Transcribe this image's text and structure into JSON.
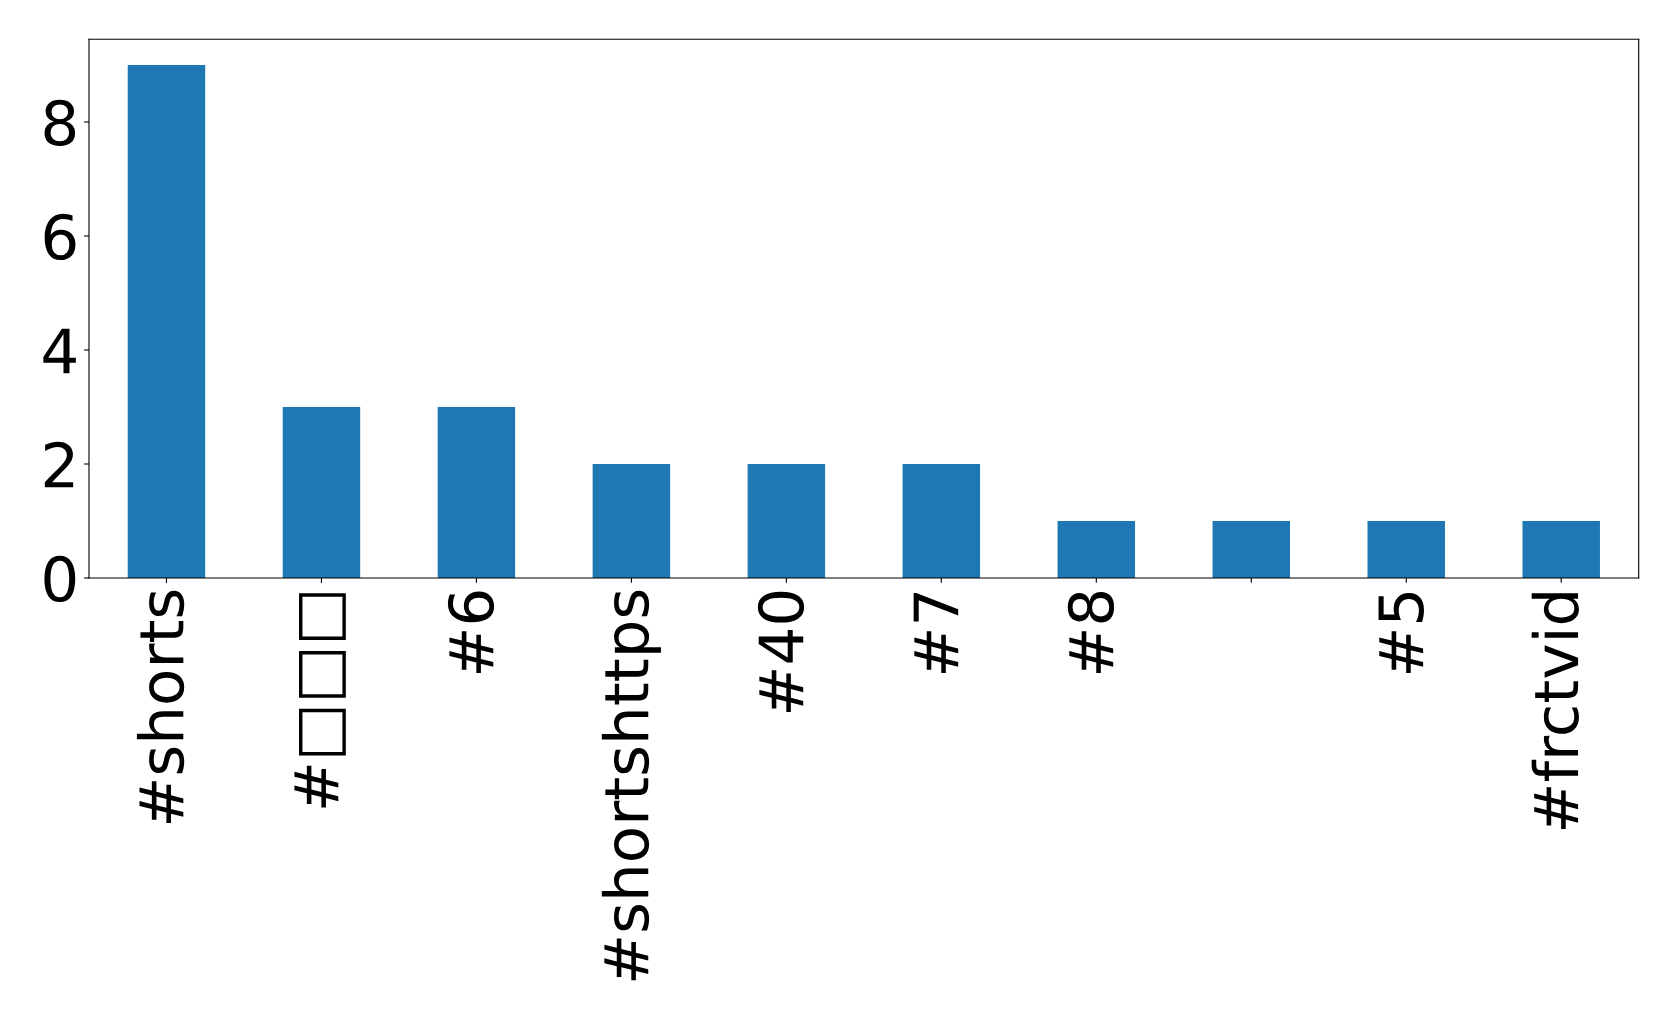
{
  "chart_data": {
    "type": "bar",
    "categories": [
      "#shorts",
      "#□□□",
      "#6",
      "#shortshttps",
      "#40",
      "#7",
      "#8",
      null,
      "#5",
      "#frctvid"
    ],
    "values": [
      9,
      3,
      3,
      2,
      2,
      2,
      1,
      1,
      1,
      1
    ],
    "color": "#1f77b4",
    "ylim": [
      0,
      9.45
    ],
    "yticks": [
      0,
      2,
      4,
      6,
      8
    ],
    "grid": false,
    "legend": false
  }
}
